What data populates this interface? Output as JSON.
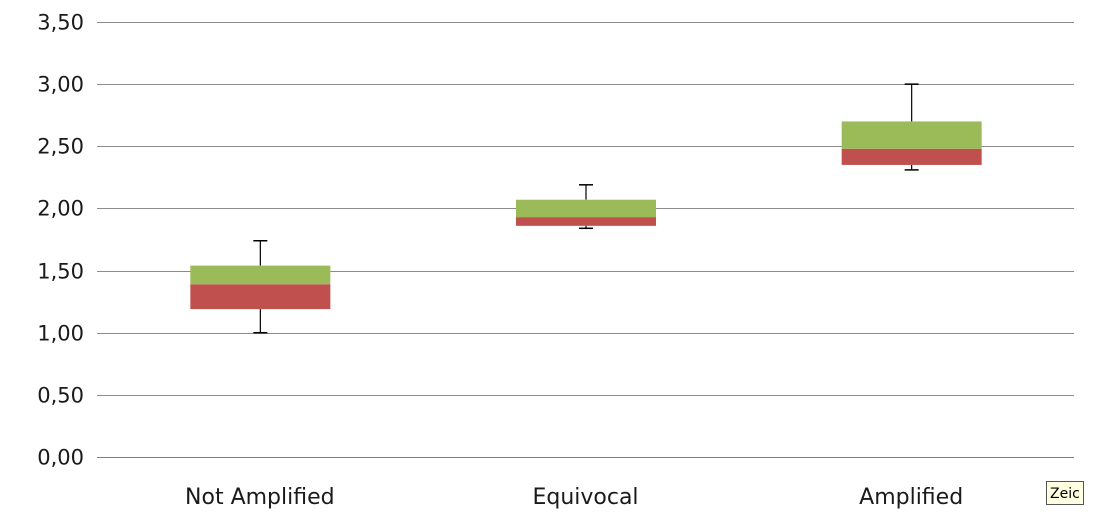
{
  "chart_data": {
    "type": "box",
    "categories": [
      "Not Amplified",
      "Equivocal",
      "Amplified"
    ],
    "boxes": [
      {
        "category": "Not Amplified",
        "whisker_low": 1.0,
        "q1": 1.19,
        "median": 1.39,
        "q3": 1.54,
        "whisker_high": 1.74
      },
      {
        "category": "Equivocal",
        "whisker_low": 1.84,
        "q1": 1.86,
        "median": 1.93,
        "q3": 2.07,
        "whisker_high": 2.19
      },
      {
        "category": "Amplified",
        "whisker_low": 2.31,
        "q1": 2.35,
        "median": 2.48,
        "q3": 2.7,
        "whisker_high": 3.0
      }
    ],
    "y_ticks": [
      "0,00",
      "0,50",
      "1,00",
      "1,50",
      "2,00",
      "2,50",
      "3,00",
      "3,50"
    ],
    "ylim": [
      0,
      3.5
    ],
    "grid": true,
    "title": "",
    "xlabel": "",
    "ylabel": "",
    "colors": {
      "lower_box": "#c0504d",
      "upper_box": "#9bbb59",
      "gridline": "#8c8c8c",
      "whisker": "#000000"
    }
  },
  "tooltip": {
    "text": "Zeic"
  }
}
